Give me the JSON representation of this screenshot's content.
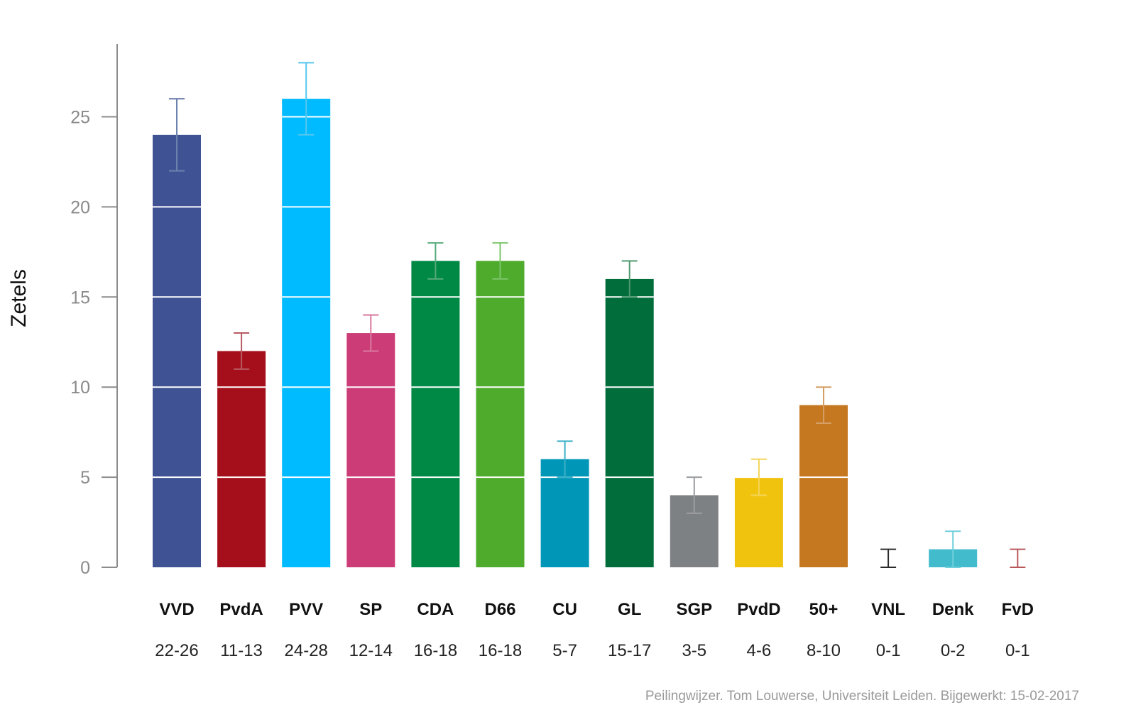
{
  "chart_data": {
    "type": "bar",
    "title": "",
    "xlabel": "",
    "ylabel": "Zetels",
    "ylim": [
      0,
      29
    ],
    "yticks": [
      0,
      5,
      10,
      15,
      20,
      25
    ],
    "grid": "white horizontal lines over bars",
    "categories": [
      "VVD",
      "PvdA",
      "PVV",
      "SP",
      "CDA",
      "D66",
      "CU",
      "GL",
      "SGP",
      "PvdD",
      "50+",
      "VNL",
      "Denk",
      "FvD"
    ],
    "values": [
      24,
      12,
      26,
      13,
      17,
      17,
      6,
      16,
      4,
      5,
      9,
      0,
      1,
      0
    ],
    "range_low": [
      22,
      11,
      24,
      12,
      16,
      16,
      5,
      15,
      3,
      4,
      8,
      0,
      0,
      0
    ],
    "range_high": [
      26,
      13,
      28,
      14,
      18,
      18,
      7,
      17,
      5,
      6,
      10,
      1,
      2,
      1
    ],
    "range_labels": [
      "22-26",
      "11-13",
      "24-28",
      "12-14",
      "16-18",
      "16-18",
      "5-7",
      "15-17",
      "3-5",
      "4-6",
      "8-10",
      "0-1",
      "0-2",
      "0-1"
    ],
    "bar_colors": [
      "#3f5293",
      "#a50f1c",
      "#00bbff",
      "#cc3d78",
      "#008945",
      "#4eab2c",
      "#0096b8",
      "#006d3a",
      "#7e8184",
      "#f0c30e",
      "#c67820",
      "#2b2b2b",
      "#42bccc",
      "#a42a2c"
    ],
    "errorbar_colors": [
      "#6b82ad",
      "#b85a60",
      "#55c7ee",
      "#d979a0",
      "#55aa7a",
      "#7bc46a",
      "#3bb0c6",
      "#4f9970",
      "#9b9da0",
      "#f5d55a",
      "#d49e64",
      "#2b2b2b",
      "#6fcfdb",
      "#b8575a"
    ]
  },
  "footer": "Peilingwijzer. Tom Louwerse, Universiteit Leiden. Bijgewerkt: 15-02-2017"
}
